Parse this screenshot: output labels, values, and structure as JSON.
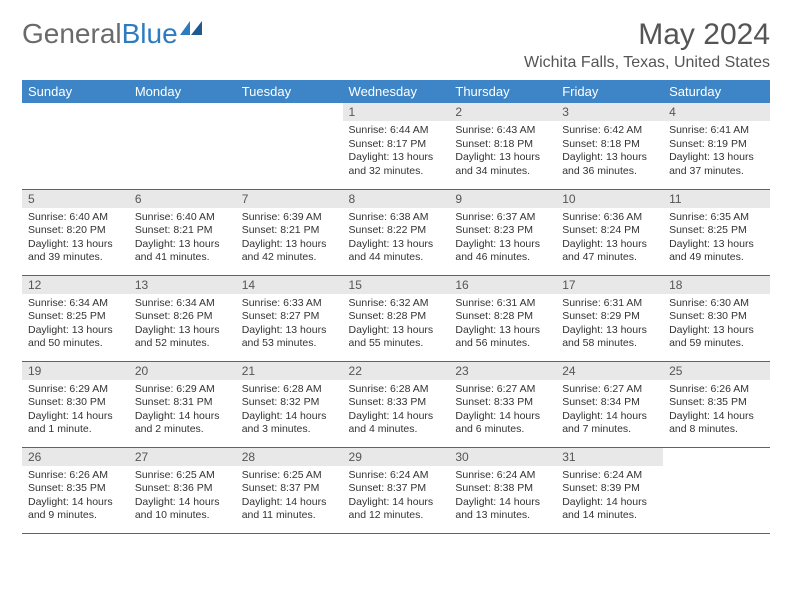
{
  "brand": {
    "part1": "General",
    "part2": "Blue"
  },
  "title": "May 2024",
  "location": "Wichita Falls, Texas, United States",
  "day_headers": [
    "Sunday",
    "Monday",
    "Tuesday",
    "Wednesday",
    "Thursday",
    "Friday",
    "Saturday"
  ],
  "colors": {
    "header_bg": "#3d85c6",
    "header_text": "#ffffff",
    "daynum_bg": "#e8e8e8",
    "border": "#3d6a99",
    "brand_gray": "#6a6a6a",
    "brand_blue": "#2e7cc0"
  },
  "weeks": [
    [
      {
        "n": "",
        "sr": "",
        "ss": "",
        "dl": ""
      },
      {
        "n": "",
        "sr": "",
        "ss": "",
        "dl": ""
      },
      {
        "n": "",
        "sr": "",
        "ss": "",
        "dl": ""
      },
      {
        "n": "1",
        "sr": "Sunrise: 6:44 AM",
        "ss": "Sunset: 8:17 PM",
        "dl": "Daylight: 13 hours and 32 minutes."
      },
      {
        "n": "2",
        "sr": "Sunrise: 6:43 AM",
        "ss": "Sunset: 8:18 PM",
        "dl": "Daylight: 13 hours and 34 minutes."
      },
      {
        "n": "3",
        "sr": "Sunrise: 6:42 AM",
        "ss": "Sunset: 8:18 PM",
        "dl": "Daylight: 13 hours and 36 minutes."
      },
      {
        "n": "4",
        "sr": "Sunrise: 6:41 AM",
        "ss": "Sunset: 8:19 PM",
        "dl": "Daylight: 13 hours and 37 minutes."
      }
    ],
    [
      {
        "n": "5",
        "sr": "Sunrise: 6:40 AM",
        "ss": "Sunset: 8:20 PM",
        "dl": "Daylight: 13 hours and 39 minutes."
      },
      {
        "n": "6",
        "sr": "Sunrise: 6:40 AM",
        "ss": "Sunset: 8:21 PM",
        "dl": "Daylight: 13 hours and 41 minutes."
      },
      {
        "n": "7",
        "sr": "Sunrise: 6:39 AM",
        "ss": "Sunset: 8:21 PM",
        "dl": "Daylight: 13 hours and 42 minutes."
      },
      {
        "n": "8",
        "sr": "Sunrise: 6:38 AM",
        "ss": "Sunset: 8:22 PM",
        "dl": "Daylight: 13 hours and 44 minutes."
      },
      {
        "n": "9",
        "sr": "Sunrise: 6:37 AM",
        "ss": "Sunset: 8:23 PM",
        "dl": "Daylight: 13 hours and 46 minutes."
      },
      {
        "n": "10",
        "sr": "Sunrise: 6:36 AM",
        "ss": "Sunset: 8:24 PM",
        "dl": "Daylight: 13 hours and 47 minutes."
      },
      {
        "n": "11",
        "sr": "Sunrise: 6:35 AM",
        "ss": "Sunset: 8:25 PM",
        "dl": "Daylight: 13 hours and 49 minutes."
      }
    ],
    [
      {
        "n": "12",
        "sr": "Sunrise: 6:34 AM",
        "ss": "Sunset: 8:25 PM",
        "dl": "Daylight: 13 hours and 50 minutes."
      },
      {
        "n": "13",
        "sr": "Sunrise: 6:34 AM",
        "ss": "Sunset: 8:26 PM",
        "dl": "Daylight: 13 hours and 52 minutes."
      },
      {
        "n": "14",
        "sr": "Sunrise: 6:33 AM",
        "ss": "Sunset: 8:27 PM",
        "dl": "Daylight: 13 hours and 53 minutes."
      },
      {
        "n": "15",
        "sr": "Sunrise: 6:32 AM",
        "ss": "Sunset: 8:28 PM",
        "dl": "Daylight: 13 hours and 55 minutes."
      },
      {
        "n": "16",
        "sr": "Sunrise: 6:31 AM",
        "ss": "Sunset: 8:28 PM",
        "dl": "Daylight: 13 hours and 56 minutes."
      },
      {
        "n": "17",
        "sr": "Sunrise: 6:31 AM",
        "ss": "Sunset: 8:29 PM",
        "dl": "Daylight: 13 hours and 58 minutes."
      },
      {
        "n": "18",
        "sr": "Sunrise: 6:30 AM",
        "ss": "Sunset: 8:30 PM",
        "dl": "Daylight: 13 hours and 59 minutes."
      }
    ],
    [
      {
        "n": "19",
        "sr": "Sunrise: 6:29 AM",
        "ss": "Sunset: 8:30 PM",
        "dl": "Daylight: 14 hours and 1 minute."
      },
      {
        "n": "20",
        "sr": "Sunrise: 6:29 AM",
        "ss": "Sunset: 8:31 PM",
        "dl": "Daylight: 14 hours and 2 minutes."
      },
      {
        "n": "21",
        "sr": "Sunrise: 6:28 AM",
        "ss": "Sunset: 8:32 PM",
        "dl": "Daylight: 14 hours and 3 minutes."
      },
      {
        "n": "22",
        "sr": "Sunrise: 6:28 AM",
        "ss": "Sunset: 8:33 PM",
        "dl": "Daylight: 14 hours and 4 minutes."
      },
      {
        "n": "23",
        "sr": "Sunrise: 6:27 AM",
        "ss": "Sunset: 8:33 PM",
        "dl": "Daylight: 14 hours and 6 minutes."
      },
      {
        "n": "24",
        "sr": "Sunrise: 6:27 AM",
        "ss": "Sunset: 8:34 PM",
        "dl": "Daylight: 14 hours and 7 minutes."
      },
      {
        "n": "25",
        "sr": "Sunrise: 6:26 AM",
        "ss": "Sunset: 8:35 PM",
        "dl": "Daylight: 14 hours and 8 minutes."
      }
    ],
    [
      {
        "n": "26",
        "sr": "Sunrise: 6:26 AM",
        "ss": "Sunset: 8:35 PM",
        "dl": "Daylight: 14 hours and 9 minutes."
      },
      {
        "n": "27",
        "sr": "Sunrise: 6:25 AM",
        "ss": "Sunset: 8:36 PM",
        "dl": "Daylight: 14 hours and 10 minutes."
      },
      {
        "n": "28",
        "sr": "Sunrise: 6:25 AM",
        "ss": "Sunset: 8:37 PM",
        "dl": "Daylight: 14 hours and 11 minutes."
      },
      {
        "n": "29",
        "sr": "Sunrise: 6:24 AM",
        "ss": "Sunset: 8:37 PM",
        "dl": "Daylight: 14 hours and 12 minutes."
      },
      {
        "n": "30",
        "sr": "Sunrise: 6:24 AM",
        "ss": "Sunset: 8:38 PM",
        "dl": "Daylight: 14 hours and 13 minutes."
      },
      {
        "n": "31",
        "sr": "Sunrise: 6:24 AM",
        "ss": "Sunset: 8:39 PM",
        "dl": "Daylight: 14 hours and 14 minutes."
      },
      {
        "n": "",
        "sr": "",
        "ss": "",
        "dl": ""
      }
    ]
  ]
}
